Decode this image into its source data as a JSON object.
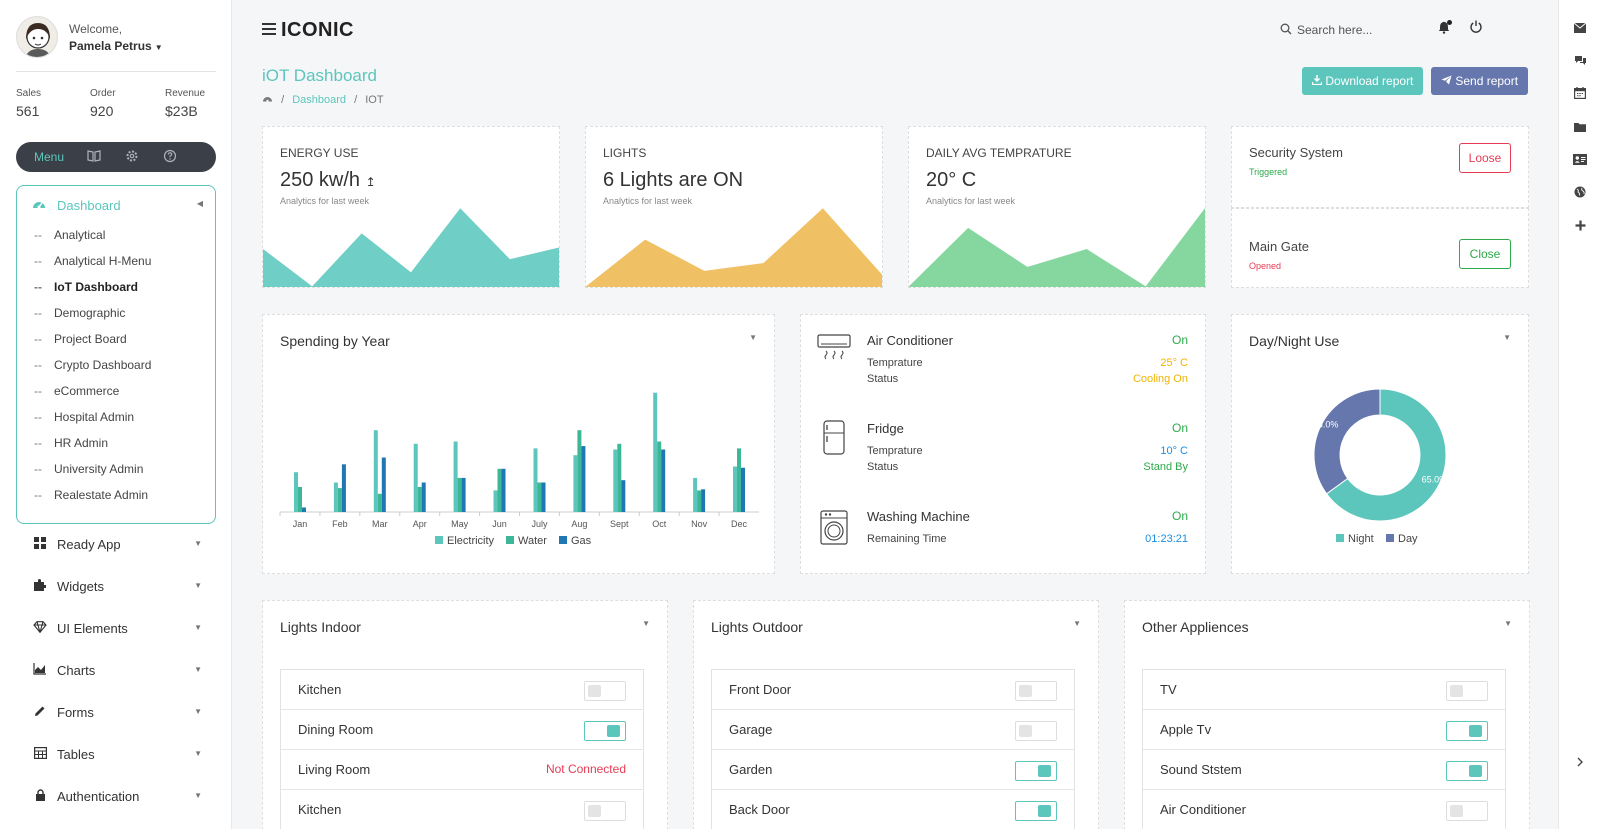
{
  "user": {
    "welcome": "Welcome,",
    "name": "Pamela Petrus"
  },
  "stats": [
    {
      "label": "Sales",
      "value": "561"
    },
    {
      "label": "Order",
      "value": "920"
    },
    {
      "label": "Revenue",
      "value": "$23B"
    }
  ],
  "menubar": {
    "menu_label": "Menu"
  },
  "sidebar": {
    "dashboard": {
      "label": "Dashboard",
      "items": [
        "Analytical",
        "Analytical H-Menu",
        "IoT Dashboard",
        "Demographic",
        "Project Board",
        "Crypto Dashboard",
        "eCommerce",
        "Hospital Admin",
        "HR Admin",
        "University Admin",
        "Realestate Admin"
      ]
    },
    "nav": [
      "Ready App",
      "Widgets",
      "UI Elements",
      "Charts",
      "Forms",
      "Tables",
      "Authentication"
    ]
  },
  "topbar": {
    "brand": "ICONIC",
    "search_placeholder": "Search here..."
  },
  "page": {
    "title": "iOT Dashboard",
    "breadcrumb": {
      "link": "Dashboard",
      "sep": "/",
      "current": "IOT"
    },
    "download_label": "Download report",
    "send_label": "Send report"
  },
  "colors": {
    "accent": "#5cc6bd",
    "secondary": "#6677ae",
    "chart_teal": "#5cc6bd",
    "chart_green": "#3db896",
    "chart_blue": "#1f77b4",
    "energy": "#6fcfc6",
    "lights": "#f0c064",
    "temp": "#86d6a0",
    "danger": "#e63c55",
    "success": "#2ea94b"
  },
  "kpis": [
    {
      "title": "ENERGY USE",
      "value": "250 kw/h",
      "value_icon": "↥",
      "sub": "Analytics for last week",
      "spark": [
        48,
        0,
        68,
        18,
        100,
        35,
        50
      ]
    },
    {
      "title": "LIGHTS",
      "value": "6 Lights are ON",
      "sub": "Analytics for last week",
      "spark": [
        0,
        60,
        20,
        30,
        100,
        15
      ]
    },
    {
      "title": "DAILY AVG TEMPRATURE",
      "value": "20° C",
      "sub": "Analytics for last week",
      "spark": [
        0,
        75,
        25,
        48,
        0,
        100
      ]
    }
  ],
  "security": [
    {
      "title": "Security System",
      "status": "Triggered",
      "action": "Loose"
    },
    {
      "title": "Main Gate",
      "status": "Opened",
      "action": "Close"
    }
  ],
  "devices": [
    {
      "name": "Air Conditioner",
      "state": "On",
      "icon": "ac-icon",
      "rows": [
        {
          "label": "Temprature",
          "value": "25° C"
        },
        {
          "label": "Status",
          "value": "Cooling On"
        }
      ]
    },
    {
      "name": "Fridge",
      "state": "On",
      "icon": "fridge-icon",
      "rows": [
        {
          "label": "Temprature",
          "value": "10° C"
        },
        {
          "label": "Status",
          "value": "Stand By"
        }
      ]
    },
    {
      "name": "Washing Machine",
      "state": "On",
      "icon": "washing-machine-icon",
      "rows": [
        {
          "label": "Remaining Time",
          "value": "01:23:21"
        }
      ]
    }
  ],
  "donut": {
    "title": "Day/Night Use"
  },
  "spending": {
    "title": "Spending by Year"
  },
  "chart_data": [
    {
      "type": "bar",
      "title": "Spending by Year",
      "categories": [
        "Jan",
        "Feb",
        "Mar",
        "Apr",
        "May",
        "Jun",
        "July",
        "Aug",
        "Sept",
        "Oct",
        "Nov",
        "Dec"
      ],
      "series": [
        {
          "name": "Electricity",
          "values": [
            35,
            26,
            72,
            60,
            62,
            19,
            56,
            50,
            55,
            105,
            30,
            40
          ]
        },
        {
          "name": "Water",
          "values": [
            22,
            21,
            16,
            22,
            30,
            38,
            26,
            72,
            60,
            62,
            19,
            56
          ]
        },
        {
          "name": "Gas",
          "values": [
            4,
            42,
            48,
            26,
            30,
            38,
            26,
            58,
            28,
            55,
            20,
            39
          ]
        }
      ],
      "legend": "bottom"
    },
    {
      "type": "pie",
      "title": "Day/Night Use",
      "labels": [
        "Night",
        "Day"
      ],
      "values": [
        65,
        35
      ],
      "data_labels": [
        "65.0%",
        "35.0%"
      ],
      "legend": "bottom"
    }
  ],
  "panels": [
    {
      "title": "Lights Indoor",
      "items": [
        {
          "name": "Kitchen",
          "on": false
        },
        {
          "name": "Dining Room",
          "on": true
        },
        {
          "name": "Living Room",
          "status": "Not Connected"
        },
        {
          "name": "Kitchen",
          "on": false
        }
      ]
    },
    {
      "title": "Lights Outdoor",
      "items": [
        {
          "name": "Front Door",
          "on": false
        },
        {
          "name": "Garage",
          "on": false
        },
        {
          "name": "Garden",
          "on": true
        },
        {
          "name": "Back Door",
          "on": true
        }
      ]
    },
    {
      "title": "Other Appliences",
      "items": [
        {
          "name": "TV",
          "on": false
        },
        {
          "name": "Apple Tv",
          "on": true
        },
        {
          "name": "Sound Ststem",
          "on": true
        },
        {
          "name": "Air Conditioner",
          "on": false
        }
      ]
    }
  ]
}
